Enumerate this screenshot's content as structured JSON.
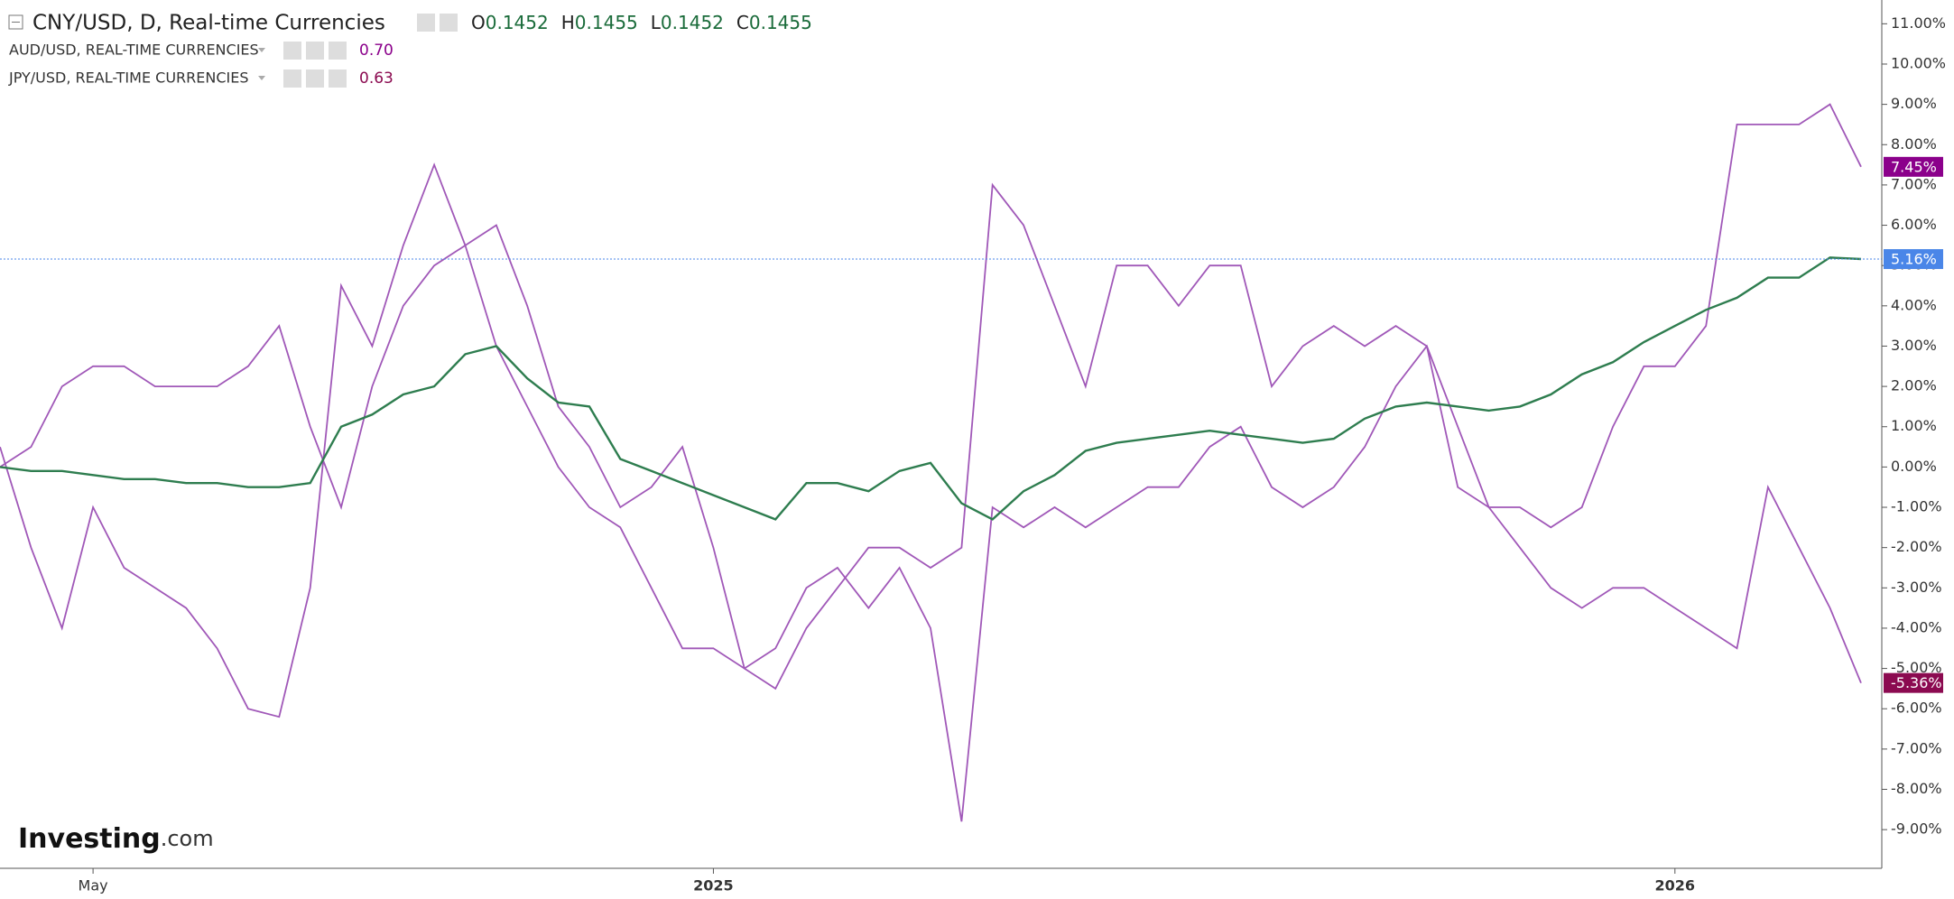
{
  "chart_data": {
    "type": "line",
    "categories": [
      null,
      null,
      null,
      "May",
      null,
      null,
      null,
      null,
      null,
      null,
      null,
      null,
      null,
      null,
      null,
      null,
      null,
      null,
      null,
      null,
      null,
      null,
      null,
      "2025",
      null,
      null,
      null,
      null,
      null,
      null,
      null,
      null,
      null,
      null,
      null,
      null,
      null,
      null,
      null,
      null,
      null,
      null,
      null,
      null,
      null,
      null,
      null,
      null,
      null,
      null,
      null,
      null,
      null,
      null,
      "2026",
      null,
      null,
      null,
      null,
      null,
      null
    ],
    "series": [
      {
        "name": "CNY/USD, D, Real-time Currencies",
        "color": "#2e7d4f",
        "values": [
          0,
          -0.1,
          -0.1,
          -0.2,
          -0.3,
          -0.3,
          -0.4,
          -0.4,
          -0.5,
          -0.5,
          -0.4,
          1.0,
          1.3,
          1.8,
          2.0,
          2.8,
          3.0,
          2.2,
          1.6,
          1.5,
          0.2,
          -0.1,
          -0.4,
          -0.7,
          -1.0,
          -1.3,
          -0.4,
          -0.4,
          -0.6,
          -0.1,
          0.1,
          -0.9,
          -1.3,
          -0.6,
          -0.2,
          0.4,
          0.6,
          0.7,
          0.8,
          0.9,
          0.8,
          0.7,
          0.6,
          0.7,
          1.2,
          1.5,
          1.6,
          1.5,
          1.4,
          1.5,
          1.8,
          2.3,
          2.6,
          3.1,
          3.5,
          3.9,
          4.2,
          4.7,
          4.7,
          5.2,
          5.16
        ],
        "end_label": {
          "value": 5.16,
          "label": "5.16%"
        },
        "label_color": "#4a86e8",
        "ohlc": [
          {
            "key": "O",
            "value": 0.1452
          },
          {
            "key": "H",
            "value": 0.1455
          },
          {
            "key": "L",
            "value": 0.1452
          },
          {
            "key": "C",
            "value": 0.1455
          }
        ]
      },
      {
        "name": "AUD/USD, REAL-TIME CURRENCIES",
        "color": "#a058b8",
        "values": [
          0.5,
          -2,
          -4,
          -1,
          -2.5,
          -3,
          -3.5,
          -4.5,
          -6,
          -6.2,
          -3,
          4.5,
          3,
          5.5,
          7.5,
          5.5,
          3,
          1.5,
          0,
          -1,
          -1.5,
          -3,
          -4.5,
          -4.5,
          -5,
          -4.5,
          -3,
          -2.5,
          -3.5,
          -2.5,
          -4,
          -8.8,
          -1,
          -1.5,
          -1,
          -1.5,
          -1,
          -0.5,
          -0.5,
          0.5,
          1,
          -0.5,
          -1,
          -0.5,
          0.5,
          2,
          3,
          1,
          -1,
          -1,
          -1.5,
          -1,
          1,
          2.5,
          2.5,
          3.5,
          8.5,
          8.5,
          8.5,
          9,
          7.45
        ],
        "legend_value": {
          "value": 0.7,
          "label": "0.70"
        },
        "end_label": {
          "value": 7.45,
          "label": "7.45%"
        },
        "label_color": "#8b008b"
      },
      {
        "name": "JPY/USD, REAL-TIME CURRENCIES",
        "color": "#a058b8",
        "values": [
          0,
          0.5,
          2,
          2.5,
          2.5,
          2,
          2,
          2,
          2.5,
          3.5,
          1,
          -1,
          2,
          4,
          5,
          5.5,
          6,
          4,
          1.5,
          0.5,
          -1,
          -0.5,
          0.5,
          -2,
          -5,
          -5.5,
          -4,
          -3,
          -2,
          -2,
          -2.5,
          -2,
          7,
          6,
          4,
          2,
          5,
          5,
          4,
          5,
          5,
          2,
          3,
          3.5,
          3,
          3.5,
          3,
          -0.5,
          -1,
          -2,
          -3,
          -3.5,
          -3,
          -3,
          -3.5,
          -4,
          -4.5,
          -0.5,
          -2,
          -3.5,
          -5.36
        ],
        "legend_value": {
          "value": 0.63,
          "label": "0.63"
        },
        "end_label": {
          "value": -5.36,
          "label": "-5.36%"
        },
        "label_color": "#8b0a50"
      }
    ],
    "ylim": [
      -9.96,
      11.59
    ],
    "yticks": [
      {
        "value": -9,
        "label": "-9.00%"
      },
      {
        "value": -8,
        "label": "-8.00%"
      },
      {
        "value": -7,
        "label": "-7.00%"
      },
      {
        "value": -6,
        "label": "-6.00%"
      },
      {
        "value": -5,
        "label": "-5.00%"
      },
      {
        "value": -4,
        "label": "-4.00%"
      },
      {
        "value": -3,
        "label": "-3.00%"
      },
      {
        "value": -2,
        "label": "-2.00%"
      },
      {
        "value": -1,
        "label": "-1.00%"
      },
      {
        "value": 0,
        "label": "0.00%"
      },
      {
        "value": 1,
        "label": "1.00%"
      },
      {
        "value": 2,
        "label": "2.00%"
      },
      {
        "value": 3,
        "label": "3.00%"
      },
      {
        "value": 4,
        "label": "4.00%"
      },
      {
        "value": 5,
        "label": "5.00%"
      },
      {
        "value": 6,
        "label": "6.00%"
      },
      {
        "value": 7,
        "label": "7.00%"
      },
      {
        "value": 8,
        "label": "8.00%"
      },
      {
        "value": 9,
        "label": "9.00%"
      },
      {
        "value": 10,
        "label": "10.00%"
      },
      {
        "value": 11,
        "label": "11.00%"
      }
    ],
    "grid": false
  },
  "logo": {
    "brand": "Investing",
    "suffix": ".com"
  }
}
